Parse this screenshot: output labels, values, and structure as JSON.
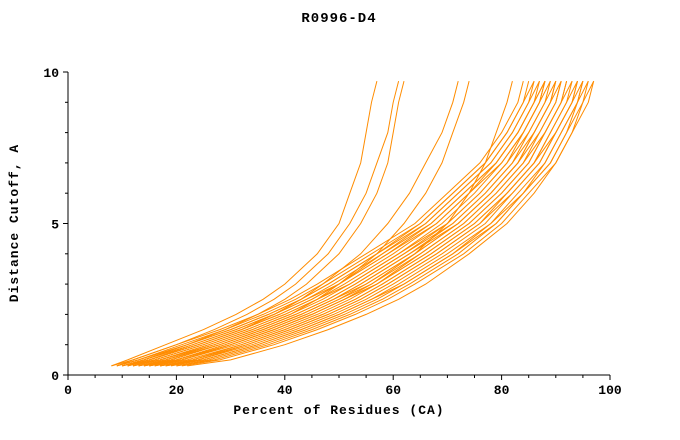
{
  "style": {
    "line_color": "#ff8c00",
    "axis_color": "#000000",
    "background": "#ffffff"
  },
  "chart_data": {
    "type": "line",
    "title": "R0996-D4",
    "xlabel": "Percent of Residues (CA)",
    "ylabel": "Distance Cutoff, A",
    "xlim": [
      0,
      100
    ],
    "ylim": [
      0,
      10
    ],
    "x_major_ticks": [
      0,
      20,
      40,
      60,
      80,
      100
    ],
    "x_minor_step": 5,
    "y_major_ticks": [
      0,
      5,
      10
    ],
    "y_minor_step": 1,
    "grid": false,
    "legend": false,
    "y_levels": [
      0.3,
      0.5,
      1,
      1.5,
      2,
      2.5,
      3,
      4,
      5,
      6,
      7,
      8,
      9,
      9.7
    ],
    "series_x": [
      [
        10,
        14,
        22,
        30,
        37,
        43,
        48,
        57,
        66,
        72,
        78,
        82,
        85,
        86
      ],
      [
        11,
        15,
        24,
        32,
        39,
        45,
        50,
        59,
        68,
        74,
        79,
        83,
        86,
        87
      ],
      [
        12,
        16,
        25,
        33,
        40,
        46,
        52,
        61,
        70,
        76,
        81,
        84,
        87,
        88
      ],
      [
        9,
        13,
        21,
        29,
        36,
        42,
        47,
        56,
        65,
        71,
        77,
        81,
        84,
        85
      ],
      [
        13,
        18,
        27,
        35,
        42,
        48,
        53,
        62,
        71,
        77,
        82,
        85,
        88,
        89
      ],
      [
        14,
        19,
        28,
        36,
        43,
        49,
        55,
        64,
        72,
        78,
        83,
        86,
        89,
        90
      ],
      [
        10,
        15,
        23,
        31,
        38,
        44,
        50,
        58,
        67,
        73,
        79,
        83,
        86,
        88
      ],
      [
        8,
        12,
        20,
        28,
        35,
        41,
        46,
        55,
        64,
        70,
        76,
        80,
        83,
        84
      ],
      [
        15,
        20,
        29,
        37,
        44,
        50,
        56,
        65,
        73,
        79,
        84,
        87,
        90,
        91
      ],
      [
        16,
        21,
        30,
        38,
        45,
        51,
        57,
        66,
        74,
        80,
        85,
        88,
        91,
        92
      ],
      [
        12,
        17,
        26,
        34,
        41,
        47,
        52,
        61,
        69,
        75,
        80,
        84,
        87,
        89
      ],
      [
        11,
        16,
        25,
        33,
        40,
        46,
        51,
        60,
        68,
        74,
        80,
        84,
        87,
        88
      ],
      [
        17,
        23,
        32,
        40,
        47,
        53,
        58,
        67,
        75,
        81,
        86,
        89,
        92,
        93
      ],
      [
        18,
        24,
        33,
        41,
        48,
        54,
        59,
        68,
        76,
        82,
        87,
        90,
        93,
        94
      ],
      [
        13,
        18,
        28,
        36,
        43,
        49,
        54,
        63,
        71,
        77,
        82,
        86,
        89,
        90
      ],
      [
        14,
        20,
        29,
        37,
        44,
        50,
        55,
        64,
        72,
        78,
        83,
        87,
        90,
        91
      ],
      [
        19,
        25,
        35,
        43,
        50,
        56,
        61,
        70,
        78,
        83,
        88,
        91,
        94,
        95
      ],
      [
        20,
        27,
        37,
        45,
        52,
        58,
        63,
        72,
        79,
        84,
        89,
        92,
        95,
        96
      ],
      [
        15,
        21,
        31,
        39,
        46,
        52,
        57,
        66,
        74,
        80,
        85,
        88,
        91,
        93
      ],
      [
        16,
        22,
        32,
        40,
        47,
        53,
        58,
        67,
        75,
        81,
        86,
        89,
        92,
        94
      ],
      [
        21,
        28,
        38,
        46,
        53,
        59,
        64,
        73,
        80,
        85,
        90,
        93,
        95,
        97
      ],
      [
        10,
        14,
        23,
        31,
        38,
        44,
        49,
        58,
        66,
        72,
        78,
        82,
        85,
        87
      ],
      [
        12,
        17,
        27,
        35,
        42,
        48,
        53,
        62,
        70,
        76,
        81,
        85,
        88,
        90
      ],
      [
        9,
        13,
        22,
        30,
        37,
        43,
        48,
        57,
        65,
        71,
        77,
        81,
        84,
        86
      ],
      [
        17,
        24,
        34,
        42,
        49,
        55,
        60,
        69,
        77,
        82,
        87,
        90,
        93,
        95
      ],
      [
        22,
        30,
        40,
        48,
        55,
        61,
        66,
        74,
        81,
        86,
        90,
        93,
        96,
        97
      ],
      [
        8,
        11,
        18,
        25,
        31,
        36,
        40,
        46,
        50,
        52,
        54,
        55,
        56,
        57
      ],
      [
        9,
        12,
        20,
        27,
        33,
        38,
        42,
        48,
        52,
        55,
        57,
        59,
        60,
        61
      ],
      [
        10,
        14,
        22,
        29,
        35,
        40,
        44,
        50,
        54,
        57,
        59,
        60,
        61,
        62
      ],
      [
        11,
        15,
        24,
        32,
        38,
        43,
        47,
        54,
        59,
        63,
        66,
        69,
        71,
        72
      ],
      [
        12,
        17,
        26,
        34,
        41,
        46,
        50,
        57,
        62,
        66,
        69,
        71,
        73,
        74
      ],
      [
        14,
        20,
        30,
        38,
        45,
        51,
        56,
        64,
        70,
        74,
        77,
        79,
        81,
        82
      ],
      [
        11,
        15,
        24,
        32,
        39,
        45,
        50,
        59,
        67,
        73,
        79,
        83,
        86,
        88
      ],
      [
        13,
        19,
        28,
        36,
        43,
        49,
        54,
        63,
        72,
        78,
        83,
        86,
        89,
        91
      ],
      [
        15,
        21,
        30,
        38,
        45,
        51,
        57,
        65,
        73,
        79,
        84,
        88,
        91,
        92
      ],
      [
        17,
        23,
        33,
        41,
        48,
        54,
        59,
        68,
        76,
        81,
        86,
        90,
        93,
        94
      ],
      [
        18,
        25,
        35,
        43,
        50,
        56,
        62,
        71,
        78,
        84,
        88,
        91,
        94,
        96
      ],
      [
        20,
        26,
        36,
        44,
        51,
        57,
        62,
        71,
        79,
        84,
        89,
        92,
        94,
        95
      ]
    ]
  }
}
